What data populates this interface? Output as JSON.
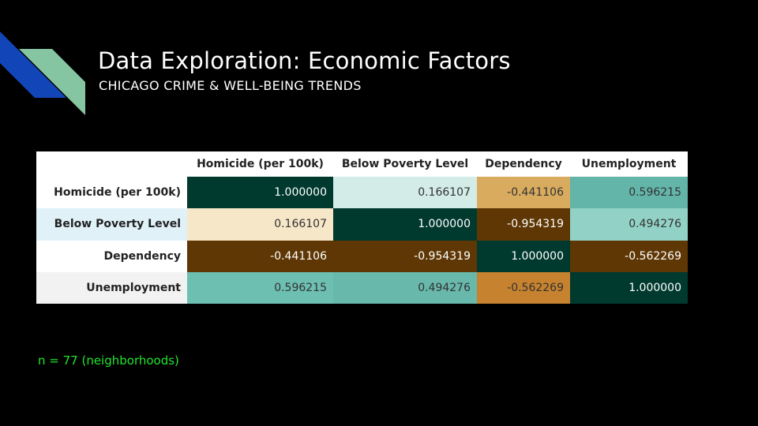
{
  "slide": {
    "title": "Data Exploration: Economic Factors",
    "subtitle": "CHICAGO CRIME & WELL-BEING TRENDS",
    "note": "n = 77 (neighborhoods)",
    "decoration_colors": {
      "blue": "#1246b8",
      "green": "#86c5a2"
    }
  },
  "table": {
    "corner_label": "",
    "columns": [
      "Homicide (per 100k)",
      "Below Poverty Level",
      "Dependency",
      "Unemployment"
    ],
    "rows": [
      {
        "label": "Homicide (per 100k)",
        "label_bg": "#ffffff",
        "cells": [
          {
            "value": "1.000000",
            "bg": "#00392e",
            "color": "#ffffff"
          },
          {
            "value": "0.166107",
            "bg": "#d3ece7",
            "color": "#333333"
          },
          {
            "value": "-0.441106",
            "bg": "#d9ab5f",
            "color": "#333333"
          },
          {
            "value": "0.596215",
            "bg": "#63b5a9",
            "color": "#333333"
          }
        ]
      },
      {
        "label": "Below Poverty Level",
        "label_bg": "#e0f2f8",
        "cells": [
          {
            "value": "0.166107",
            "bg": "#f6e7c8",
            "color": "#333333"
          },
          {
            "value": "1.000000",
            "bg": "#00392e",
            "color": "#ffffff"
          },
          {
            "value": "-0.954319",
            "bg": "#5e3705",
            "color": "#ffffff"
          },
          {
            "value": "0.494276",
            "bg": "#92d2c6",
            "color": "#333333"
          }
        ]
      },
      {
        "label": "Dependency",
        "label_bg": "#ffffff",
        "cells": [
          {
            "value": "-0.441106",
            "bg": "#5e3705",
            "color": "#ffffff"
          },
          {
            "value": "-0.954319",
            "bg": "#5e3705",
            "color": "#ffffff"
          },
          {
            "value": "1.000000",
            "bg": "#00392e",
            "color": "#ffffff"
          },
          {
            "value": "-0.562269",
            "bg": "#5e3705",
            "color": "#ffffff"
          }
        ]
      },
      {
        "label": "Unemployment",
        "label_bg": "#f2f2f2",
        "cells": [
          {
            "value": "0.596215",
            "bg": "#6cbfb1",
            "color": "#333333"
          },
          {
            "value": "0.494276",
            "bg": "#68b8ac",
            "color": "#333333"
          },
          {
            "value": "-0.562269",
            "bg": "#c6822e",
            "color": "#333333"
          },
          {
            "value": "1.000000",
            "bg": "#00392e",
            "color": "#ffffff"
          }
        ]
      }
    ]
  }
}
